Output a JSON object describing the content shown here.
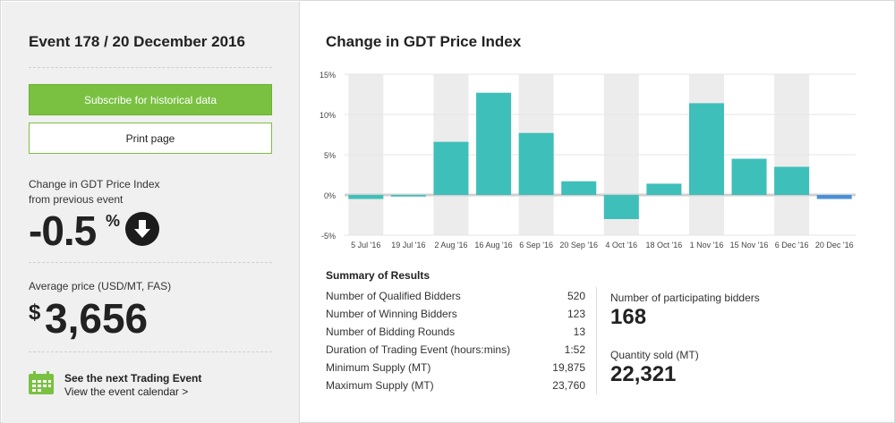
{
  "event": {
    "title": "Event 178 / 20 December 2016"
  },
  "buttons": {
    "subscribe_label": "Subscribe for historical data",
    "print_label": "Print page"
  },
  "change": {
    "label_line1": "Change in GDT Price Index",
    "label_line2": "from previous event",
    "value": "-0.5",
    "unit": "%",
    "direction_icon": "arrow-down-icon"
  },
  "average_price": {
    "label": "Average price (USD/MT, FAS)",
    "currency": "$",
    "value": "3,656"
  },
  "next_event": {
    "title": "See the next Trading Event",
    "link": "View the event calendar >",
    "icon": "calendar-icon"
  },
  "chart_data": {
    "type": "bar",
    "title": "Change in GDT Price Index",
    "categories": [
      "5 Jul '16",
      "19 Jul '16",
      "2 Aug '16",
      "16 Aug '16",
      "6 Sep '16",
      "20 Sep '16",
      "4 Oct '16",
      "18 Oct '16",
      "1 Nov '16",
      "15 Nov '16",
      "6 Dec '16",
      "20 Dec '16"
    ],
    "values": [
      -0.5,
      -0.2,
      6.6,
      12.7,
      7.7,
      1.7,
      -3.0,
      1.4,
      11.4,
      4.5,
      3.5,
      -0.5
    ],
    "ylim": [
      -5,
      15
    ],
    "yticks": [
      -5,
      0,
      5,
      10,
      15
    ],
    "ytick_labels": [
      "-5%",
      "0%",
      "5%",
      "10%",
      "15%"
    ],
    "bar_color": "#3fbfb9",
    "highlight_color": "#4a90d9",
    "grid": true
  },
  "summary": {
    "title": "Summary of Results",
    "rows": [
      {
        "label": "Number of Qualified Bidders",
        "value": "520"
      },
      {
        "label": "Number of Winning Bidders",
        "value": "123"
      },
      {
        "label": "Number of Bidding Rounds",
        "value": "13"
      },
      {
        "label": "Duration of Trading Event (hours:mins)",
        "value": "1:52"
      },
      {
        "label": "Minimum Supply (MT)",
        "value": "19,875"
      },
      {
        "label": "Maximum Supply (MT)",
        "value": "23,760"
      }
    ],
    "participating_label": "Number of participating bidders",
    "participating_value": "168",
    "quantity_label": "Quantity sold (MT)",
    "quantity_value": "22,321"
  },
  "colors": {
    "accent_green": "#7ac142",
    "panel_bg": "#f0f0f0"
  }
}
